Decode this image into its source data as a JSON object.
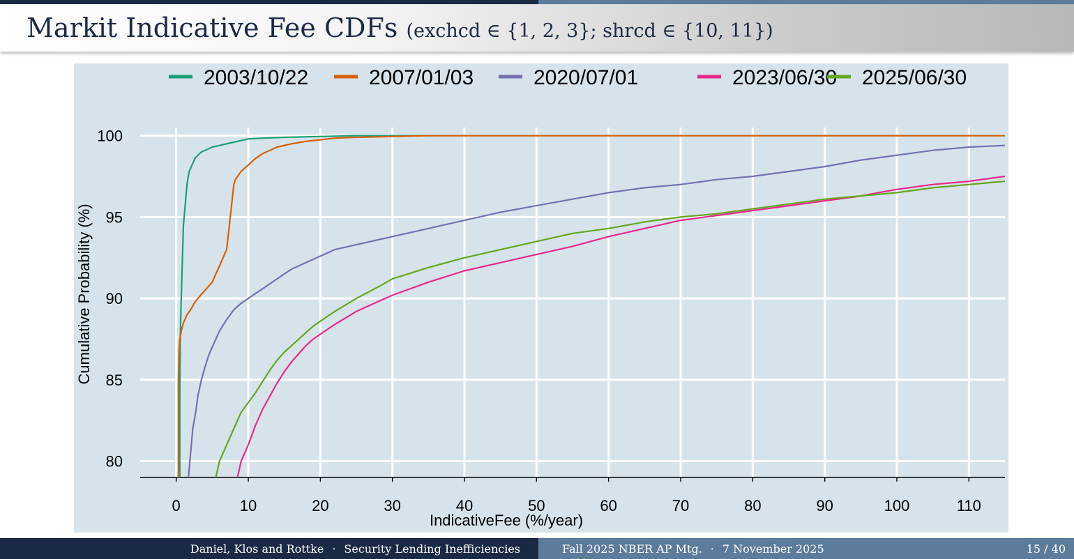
{
  "slide": {
    "title": "Markit Indicative Fee CDFs",
    "subtitle": "(exchcd ∈ {1, 2, 3}; shrcd ∈ {10, 11})"
  },
  "footer": {
    "authors": "Daniel, Klos and Rottke",
    "separator": "·",
    "short_title": "Security Lending Inefficiencies",
    "event": "Fall 2025 NBER AP Mtg.",
    "date": "7 November 2025",
    "page": "15 / 40"
  },
  "colors": {
    "plot_bg": "#d6e3ea",
    "grid": "#ffffff",
    "axis": "#000000"
  },
  "chart_data": {
    "type": "line",
    "title": "",
    "xlabel": "IndicativeFee (%/year)",
    "ylabel": "Cumulative Probability (%)",
    "xlim": [
      -5,
      115
    ],
    "ylim": [
      79,
      100.5
    ],
    "xticks": [
      0,
      10,
      20,
      30,
      40,
      50,
      60,
      70,
      80,
      90,
      100,
      110
    ],
    "yticks": [
      80,
      85,
      90,
      95,
      100
    ],
    "grid": true,
    "legend_position": "top",
    "series": [
      {
        "name": "2003/10/22",
        "color": "#1b9e77",
        "x": [
          0.5,
          0.5,
          0.55,
          0.6,
          0.7,
          0.8,
          0.9,
          1.0,
          1.2,
          1.4,
          1.5,
          1.6,
          1.8,
          2.0,
          2.3,
          2.6,
          3.0,
          3.5,
          4.0,
          5.0,
          6.0,
          7.0,
          8.0,
          9.0,
          10.0,
          12.0,
          15.0,
          20.0,
          25.0,
          30.0,
          115.0
        ],
        "y": [
          79.0,
          84.0,
          87.0,
          88.5,
          90.0,
          91.5,
          93.0,
          94.5,
          95.5,
          96.5,
          97.0,
          97.3,
          97.8,
          98.0,
          98.3,
          98.6,
          98.8,
          99.0,
          99.1,
          99.3,
          99.4,
          99.5,
          99.6,
          99.7,
          99.8,
          99.85,
          99.9,
          99.95,
          100.0,
          100.0,
          100.0
        ]
      },
      {
        "name": "2007/01/03",
        "color": "#d95f02",
        "x": [
          0.3,
          0.3,
          0.35,
          0.4,
          0.5,
          0.7,
          1.0,
          1.5,
          2.0,
          2.5,
          3.0,
          4.0,
          5.0,
          5.5,
          6.0,
          6.5,
          7.0,
          7.5,
          8.0,
          8.2,
          9.0,
          10.0,
          11.0,
          12.0,
          13.0,
          14.0,
          16.0,
          18.0,
          20.0,
          22.0,
          25.0,
          30.0,
          35.0,
          40.0,
          115.0
        ],
        "y": [
          79.0,
          85.0,
          86.0,
          87.0,
          87.5,
          88.0,
          88.5,
          89.0,
          89.3,
          89.7,
          90.0,
          90.5,
          91.0,
          91.5,
          92.0,
          92.5,
          93.0,
          95.0,
          97.0,
          97.3,
          97.8,
          98.2,
          98.6,
          98.9,
          99.1,
          99.3,
          99.5,
          99.65,
          99.75,
          99.85,
          99.9,
          99.95,
          100.0,
          100.0,
          100.0
        ]
      },
      {
        "name": "2020/07/01",
        "color": "#7570b3",
        "x": [
          1.7,
          2.0,
          2.3,
          2.7,
          3.0,
          3.5,
          4.0,
          4.5,
          5.0,
          5.5,
          6.0,
          7.0,
          8.0,
          9.0,
          10.0,
          11.0,
          12.0,
          13.0,
          14.0,
          15.0,
          16.0,
          18.0,
          20.0,
          22.0,
          25.0,
          28.0,
          30.0,
          35.0,
          40.0,
          45.0,
          50.0,
          55.0,
          60.0,
          65.0,
          70.0,
          75.0,
          80.0,
          85.0,
          90.0,
          95.0,
          100.0,
          105.0,
          110.0,
          115.0
        ],
        "y": [
          79.0,
          80.5,
          82.0,
          83.0,
          84.0,
          85.0,
          85.8,
          86.5,
          87.0,
          87.5,
          88.0,
          88.7,
          89.3,
          89.7,
          90.0,
          90.3,
          90.6,
          90.9,
          91.2,
          91.5,
          91.8,
          92.2,
          92.6,
          93.0,
          93.3,
          93.6,
          93.8,
          94.3,
          94.8,
          95.3,
          95.7,
          96.1,
          96.5,
          96.8,
          97.0,
          97.3,
          97.5,
          97.8,
          98.1,
          98.5,
          98.8,
          99.1,
          99.3,
          99.4
        ]
      },
      {
        "name": "2023/06/30",
        "color": "#e7298a",
        "x": [
          8.5,
          9.0,
          10.0,
          11.0,
          12.0,
          13.0,
          14.0,
          15.0,
          16.0,
          17.0,
          18.0,
          19.0,
          20.0,
          22.0,
          25.0,
          28.0,
          30.0,
          35.0,
          40.0,
          45.0,
          50.0,
          55.0,
          60.0,
          65.0,
          70.0,
          75.0,
          80.0,
          85.0,
          90.0,
          95.0,
          100.0,
          105.0,
          110.0,
          115.0
        ],
        "y": [
          79.0,
          80.0,
          81.0,
          82.2,
          83.2,
          84.0,
          84.8,
          85.5,
          86.1,
          86.6,
          87.1,
          87.5,
          87.8,
          88.4,
          89.2,
          89.8,
          90.2,
          91.0,
          91.7,
          92.2,
          92.7,
          93.2,
          93.8,
          94.3,
          94.8,
          95.1,
          95.4,
          95.7,
          96.0,
          96.3,
          96.7,
          97.0,
          97.2,
          97.5
        ]
      },
      {
        "name": "2025/06/30",
        "color": "#66a61e",
        "x": [
          5.5,
          6.0,
          7.0,
          8.0,
          9.0,
          10.0,
          11.0,
          12.0,
          13.0,
          14.0,
          15.0,
          16.0,
          17.0,
          18.0,
          19.0,
          20.0,
          22.0,
          25.0,
          28.0,
          30.0,
          35.0,
          40.0,
          45.0,
          50.0,
          55.0,
          60.0,
          65.0,
          70.0,
          75.0,
          80.0,
          85.0,
          90.0,
          95.0,
          100.0,
          105.0,
          110.0,
          115.0
        ],
        "y": [
          79.0,
          80.0,
          81.0,
          82.0,
          83.0,
          83.6,
          84.2,
          84.9,
          85.6,
          86.2,
          86.7,
          87.1,
          87.5,
          87.9,
          88.3,
          88.6,
          89.2,
          90.0,
          90.7,
          91.2,
          91.9,
          92.5,
          93.0,
          93.5,
          94.0,
          94.3,
          94.7,
          95.0,
          95.2,
          95.5,
          95.8,
          96.1,
          96.3,
          96.5,
          96.8,
          97.0,
          97.2
        ]
      }
    ]
  }
}
